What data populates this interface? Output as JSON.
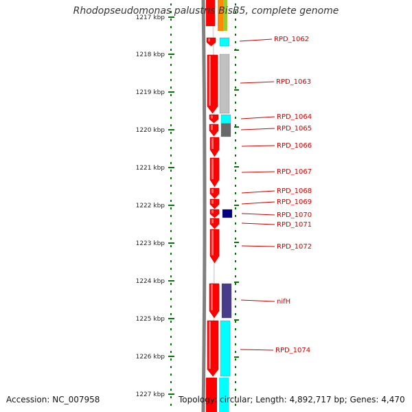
{
  "title": "Rhodopseudomonas palustris BisB5, complete genome",
  "footer": {
    "accession": "Accession: NC_007958",
    "topology": "Topology: circular; Length: 4,892,717 bp; Genes: 4,470"
  },
  "ruler": {
    "labels": [
      "1217 kbp",
      "1218 kbp",
      "1219 kbp",
      "1220 kbp",
      "1221 kbp",
      "1222 kbp",
      "1223 kbp",
      "1224 kbp",
      "1225 kbp",
      "1226 kbp",
      "1227 kbp"
    ]
  },
  "genes": [
    {
      "label": "RPD_1062",
      "cog_color": "#00ffff"
    },
    {
      "label": "RPD_1063",
      "cog_color": "#c0c0c0"
    },
    {
      "label": "RPD_1064",
      "cog_color": "#00ffff"
    },
    {
      "label": "RPD_1065",
      "cog_color": "#696969"
    },
    {
      "label": "RPD_1066",
      "cog_color": null
    },
    {
      "label": "RPD_1067",
      "cog_color": null
    },
    {
      "label": "RPD_1068",
      "cog_color": null
    },
    {
      "label": "RPD_1069",
      "cog_color": null
    },
    {
      "label": "RPD_1070",
      "cog_color": "#000080"
    },
    {
      "label": "RPD_1071",
      "cog_color": null
    },
    {
      "label": "RPD_1072",
      "cog_color": null
    },
    {
      "label": "nifH",
      "cog_color": "#483d8b"
    },
    {
      "label": "RPD_1074",
      "cog_color": "#00ffff"
    }
  ],
  "colors": {
    "gene_arrow": "#ff0000",
    "label_text": "#cc0000",
    "ruler_tick": "#007700",
    "backbone": "#808080"
  }
}
